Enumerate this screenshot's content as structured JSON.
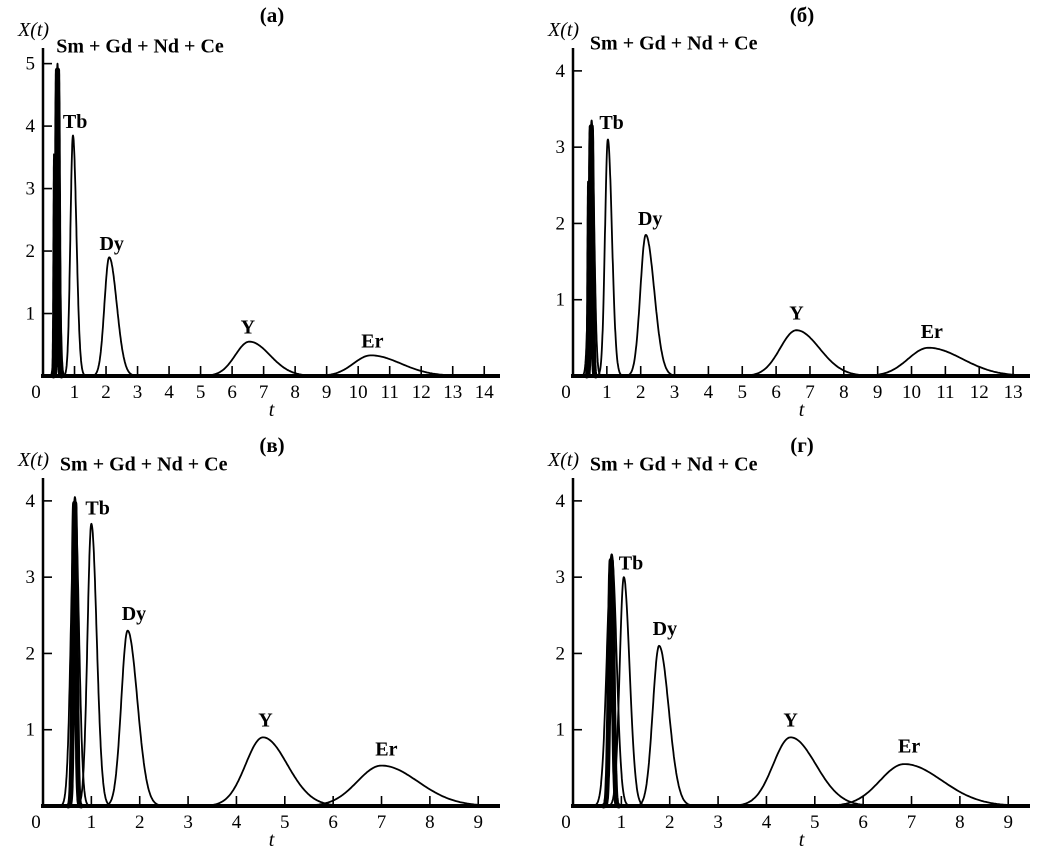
{
  "figure": {
    "background": "#ffffff",
    "curve_color": "#000000"
  },
  "chart_data": {
    "type": "line",
    "layout": "2x2 grid of elution chromatogram panels; axes drawn in black on white, no gridlines, no legend",
    "panels": [
      {
        "title": "(a)",
        "ylabel": "X(t)",
        "xlabel": "t",
        "xlim": [
          0,
          14.5
        ],
        "ylim": [
          0,
          5.25
        ],
        "xticks": [
          0,
          1,
          2,
          3,
          4,
          5,
          6,
          7,
          8,
          9,
          10,
          11,
          12,
          13,
          14
        ],
        "yticks": [
          1,
          2,
          3,
          4,
          5
        ],
        "mixture_label": {
          "text": "Sm + Gd + Nd + Ce",
          "x": 0.42,
          "y": 5.18
        },
        "cluster": {
          "element": "Sm + Gd + Nd + Ce",
          "components": [
            {
              "t": 0.46,
              "height": 5.0,
              "sigma_l": 0.06,
              "sigma_r": 0.06,
              "lw": 1.8
            },
            {
              "t": 0.46,
              "height": 4.9,
              "sigma_l": 0.03,
              "sigma_r": 0.03,
              "lw": 5
            },
            {
              "t": 0.345,
              "height": 3.55,
              "sigma_l": 0.02,
              "sigma_r": 0.02,
              "lw": 1.5
            }
          ]
        },
        "peaks": [
          {
            "element": "Tb",
            "t": 0.95,
            "height": 3.85,
            "sigma_l": 0.08,
            "sigma_r": 0.11,
            "label_x": 1.02,
            "label_y": 3.97
          },
          {
            "element": "Dy",
            "t": 2.1,
            "height": 1.9,
            "sigma_l": 0.15,
            "sigma_r": 0.24,
            "label_x": 2.18,
            "label_y": 2.02
          },
          {
            "element": "Y",
            "t": 6.55,
            "height": 0.55,
            "sigma_l": 0.45,
            "sigma_r": 0.65,
            "label_x": 6.5,
            "label_y": 0.68
          },
          {
            "element": "Er",
            "t": 10.4,
            "height": 0.33,
            "sigma_l": 0.55,
            "sigma_r": 0.95,
            "label_x": 10.45,
            "label_y": 0.46
          }
        ]
      },
      {
        "title": "(б)",
        "ylabel": "X(t)",
        "xlabel": "t",
        "xlim": [
          0,
          13.5
        ],
        "ylim": [
          0,
          4.3
        ],
        "xticks": [
          0,
          1,
          2,
          3,
          4,
          5,
          6,
          7,
          8,
          9,
          10,
          11,
          12,
          13
        ],
        "yticks": [
          1,
          2,
          3,
          4
        ],
        "mixture_label": {
          "text": "Sm + Gd + Nd + Ce",
          "x": 0.5,
          "y": 4.28
        },
        "cluster": {
          "element": "Sm + Gd + Nd + Ce",
          "components": [
            {
              "t": 0.55,
              "height": 3.35,
              "sigma_l": 0.075,
              "sigma_r": 0.075,
              "lw": 1.8
            },
            {
              "t": 0.54,
              "height": 3.27,
              "sigma_l": 0.032,
              "sigma_r": 0.032,
              "lw": 5
            },
            {
              "t": 0.44,
              "height": 2.55,
              "sigma_l": 0.02,
              "sigma_r": 0.02,
              "lw": 1.5
            }
          ]
        },
        "peaks": [
          {
            "element": "Tb",
            "t": 1.03,
            "height": 3.1,
            "sigma_l": 0.085,
            "sigma_r": 0.12,
            "label_x": 1.14,
            "label_y": 3.24
          },
          {
            "element": "Dy",
            "t": 2.15,
            "height": 1.85,
            "sigma_l": 0.16,
            "sigma_r": 0.25,
            "label_x": 2.28,
            "label_y": 1.98
          },
          {
            "element": "Y",
            "t": 6.6,
            "height": 0.6,
            "sigma_l": 0.48,
            "sigma_r": 0.68,
            "label_x": 6.6,
            "label_y": 0.74
          },
          {
            "element": "Er",
            "t": 10.5,
            "height": 0.37,
            "sigma_l": 0.6,
            "sigma_r": 1.0,
            "label_x": 10.6,
            "label_y": 0.5
          }
        ]
      },
      {
        "title": "(в)",
        "ylabel": "X(t)",
        "xlabel": "t",
        "xlim": [
          0,
          9.45
        ],
        "ylim": [
          0,
          4.3
        ],
        "xticks": [
          0,
          1,
          2,
          3,
          4,
          5,
          6,
          7,
          8,
          9
        ],
        "yticks": [
          1,
          2,
          3,
          4
        ],
        "mixture_label": {
          "text": "Sm + Gd + Nd + Ce",
          "x": 0.35,
          "y": 4.4
        },
        "cluster": {
          "element": "Sm + Gd + Nd + Ce",
          "components": [
            {
              "t": 0.66,
              "height": 4.05,
              "sigma_l": 0.08,
              "sigma_r": 0.08,
              "lw": 1.8
            },
            {
              "t": 0.655,
              "height": 3.97,
              "sigma_l": 0.032,
              "sigma_r": 0.032,
              "lw": 5
            }
          ]
        },
        "peaks": [
          {
            "element": "Tb",
            "t": 1.0,
            "height": 3.7,
            "sigma_l": 0.08,
            "sigma_r": 0.11,
            "label_x": 1.13,
            "label_y": 3.82
          },
          {
            "element": "Dy",
            "t": 1.75,
            "height": 2.3,
            "sigma_l": 0.13,
            "sigma_r": 0.2,
            "label_x": 1.88,
            "label_y": 2.44
          },
          {
            "element": "Y",
            "t": 4.55,
            "height": 0.9,
            "sigma_l": 0.36,
            "sigma_r": 0.5,
            "label_x": 4.6,
            "label_y": 1.04
          },
          {
            "element": "Er",
            "t": 7.0,
            "height": 0.53,
            "sigma_l": 0.5,
            "sigma_r": 0.75,
            "label_x": 7.1,
            "label_y": 0.66
          }
        ]
      },
      {
        "title": "(г)",
        "ylabel": "X(t)",
        "xlabel": "t",
        "xlim": [
          0,
          9.45
        ],
        "ylim": [
          0,
          4.3
        ],
        "xticks": [
          0,
          1,
          2,
          3,
          4,
          5,
          6,
          7,
          8,
          9
        ],
        "yticks": [
          1,
          2,
          3,
          4
        ],
        "mixture_label": {
          "text": "Sm + Gd + Nd + Ce",
          "x": 0.35,
          "y": 4.4
        },
        "cluster": {
          "element": "Sm + Gd + Nd + Ce",
          "components": [
            {
              "t": 0.8,
              "height": 3.3,
              "sigma_l": 0.1,
              "sigma_r": 0.1,
              "lw": 1.8
            },
            {
              "t": 0.79,
              "height": 3.22,
              "sigma_l": 0.038,
              "sigma_r": 0.038,
              "lw": 5
            }
          ]
        },
        "peaks": [
          {
            "element": "Tb",
            "t": 1.05,
            "height": 3.0,
            "sigma_l": 0.085,
            "sigma_r": 0.12,
            "label_x": 1.2,
            "label_y": 3.1
          },
          {
            "element": "Dy",
            "t": 1.78,
            "height": 2.1,
            "sigma_l": 0.13,
            "sigma_r": 0.2,
            "label_x": 1.9,
            "label_y": 2.24
          },
          {
            "element": "Y",
            "t": 4.5,
            "height": 0.9,
            "sigma_l": 0.36,
            "sigma_r": 0.52,
            "label_x": 4.5,
            "label_y": 1.04
          },
          {
            "element": "Er",
            "t": 6.85,
            "height": 0.55,
            "sigma_l": 0.5,
            "sigma_r": 0.78,
            "label_x": 6.95,
            "label_y": 0.7
          }
        ]
      }
    ]
  }
}
